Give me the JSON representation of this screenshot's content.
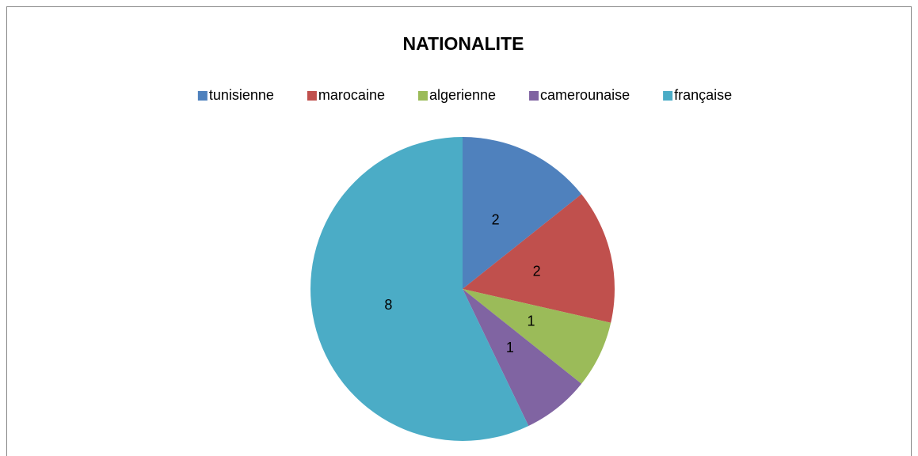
{
  "chart_data": {
    "type": "pie",
    "title": "NATIONALITE",
    "categories": [
      "tunisienne",
      "marocaine",
      "algerienne",
      "camerounaise",
      "française"
    ],
    "values": [
      2,
      2,
      1,
      1,
      8
    ],
    "colors": [
      "#4f81bd",
      "#c0504d",
      "#9bbb59",
      "#8064a2",
      "#4bacc6"
    ],
    "legend": "top"
  }
}
